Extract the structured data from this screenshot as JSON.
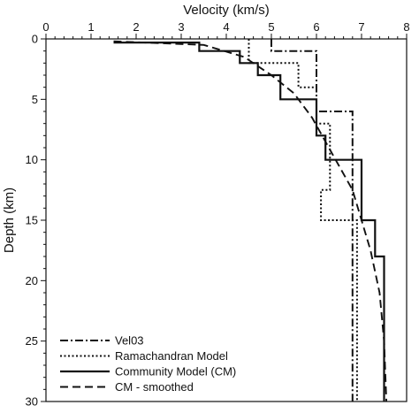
{
  "chart_data": {
    "type": "line",
    "xlabel": "Velocity (km/s)",
    "ylabel": "Depth (km)",
    "xlim": [
      0,
      8
    ],
    "ylim": [
      0,
      30
    ],
    "y_inverted": true,
    "x_axis_position": "top",
    "xticks": [
      0,
      1,
      2,
      3,
      4,
      5,
      6,
      7,
      8
    ],
    "yticks": [
      0,
      5,
      10,
      15,
      20,
      25,
      30
    ],
    "grid": false,
    "legend_position": "bottom-left",
    "series": [
      {
        "name": "Vel03",
        "style": "dashdot",
        "points": [
          [
            5.0,
            0
          ],
          [
            5.0,
            1
          ],
          [
            6.0,
            1
          ],
          [
            6.0,
            6
          ],
          [
            6.8,
            6
          ],
          [
            6.8,
            30
          ]
        ]
      },
      {
        "name": "Ramachandran Model",
        "style": "dotted",
        "points": [
          [
            4.5,
            0
          ],
          [
            4.5,
            2
          ],
          [
            5.6,
            2
          ],
          [
            5.6,
            4
          ],
          [
            6.0,
            4
          ],
          [
            6.0,
            7
          ],
          [
            6.3,
            7
          ],
          [
            6.3,
            12.5
          ],
          [
            6.1,
            12.5
          ],
          [
            6.1,
            15
          ],
          [
            6.9,
            15
          ],
          [
            6.9,
            30
          ]
        ]
      },
      {
        "name": "Community Model (CM)",
        "style": "solid",
        "points": [
          [
            1.5,
            0.3
          ],
          [
            3.4,
            0.3
          ],
          [
            3.4,
            1
          ],
          [
            4.3,
            1
          ],
          [
            4.3,
            2
          ],
          [
            4.7,
            2
          ],
          [
            4.7,
            3
          ],
          [
            5.2,
            3
          ],
          [
            5.2,
            5
          ],
          [
            6.0,
            5
          ],
          [
            6.0,
            8
          ],
          [
            6.2,
            8
          ],
          [
            6.2,
            10
          ],
          [
            7.0,
            10
          ],
          [
            7.0,
            15
          ],
          [
            7.3,
            15
          ],
          [
            7.3,
            18
          ],
          [
            7.5,
            18
          ],
          [
            7.5,
            30
          ]
        ]
      },
      {
        "name": "CM - smoothed",
        "style": "dashed",
        "points": [
          [
            1.5,
            0.2
          ],
          [
            3.5,
            0.5
          ],
          [
            4.4,
            1.5
          ],
          [
            5.0,
            3
          ],
          [
            5.5,
            4.5
          ],
          [
            5.9,
            6.5
          ],
          [
            6.2,
            8.5
          ],
          [
            6.5,
            10.5
          ],
          [
            6.8,
            12.5
          ],
          [
            7.0,
            15
          ],
          [
            7.2,
            17.5
          ],
          [
            7.4,
            21
          ],
          [
            7.5,
            25
          ],
          [
            7.55,
            30
          ]
        ]
      }
    ]
  }
}
